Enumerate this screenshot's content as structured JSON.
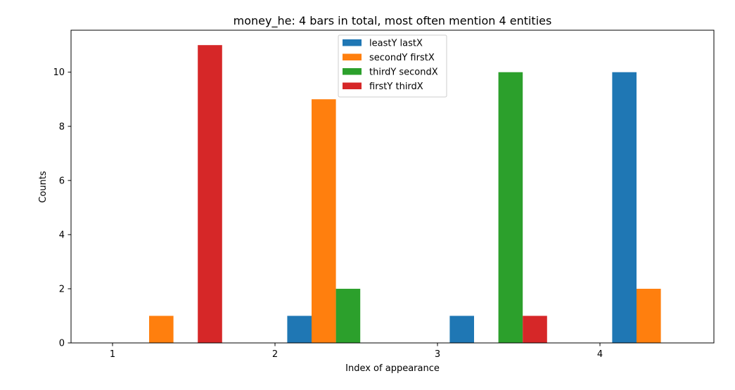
{
  "chart_data": {
    "type": "bar",
    "title": "money_he: 4 bars in total, most often mention  4 entities",
    "xlabel": "Index of appearance",
    "ylabel": "Counts",
    "categories": [
      "1",
      "2",
      "3",
      "4"
    ],
    "ylim": [
      0,
      11.55
    ],
    "yticks": [
      0,
      2,
      4,
      6,
      8,
      10
    ],
    "grid": false,
    "legend_position": "top-center",
    "series": [
      {
        "name": "leastY lastX",
        "color": "#1f77b4",
        "values": [
          0,
          1,
          1,
          10
        ]
      },
      {
        "name": "secondY firstX",
        "color": "#ff7f0e",
        "values": [
          1,
          9,
          0,
          2
        ]
      },
      {
        "name": "thirdY secondX",
        "color": "#2ca02c",
        "values": [
          0,
          2,
          10,
          0
        ]
      },
      {
        "name": "firstY thirdX",
        "color": "#d62728",
        "values": [
          11,
          0,
          1,
          0
        ]
      }
    ]
  }
}
